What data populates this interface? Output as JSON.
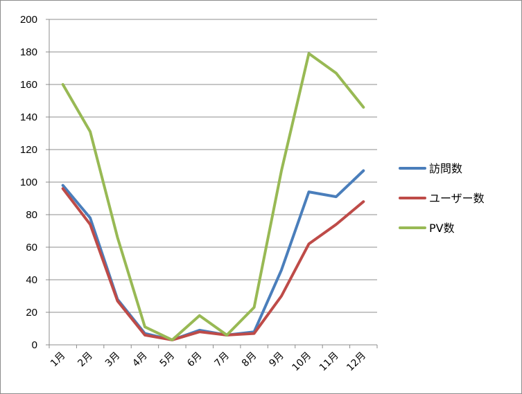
{
  "chart_data": {
    "type": "line",
    "categories": [
      "1月",
      "2月",
      "3月",
      "4月",
      "5月",
      "6月",
      "7月",
      "8月",
      "9月",
      "10月",
      "11月",
      "12月"
    ],
    "ylim": [
      0,
      200
    ],
    "y_ticks": [
      0,
      20,
      40,
      60,
      80,
      100,
      120,
      140,
      160,
      180,
      200
    ],
    "grid": "horizontal",
    "legend_position": "right",
    "series": [
      {
        "name": "訪問数",
        "color": "#4a7ebb",
        "values": [
          98,
          78,
          28,
          7,
          3,
          9,
          6,
          8,
          46,
          94,
          91,
          107
        ]
      },
      {
        "name": "ユーザー数",
        "color": "#be4b48",
        "values": [
          96,
          74,
          27,
          6,
          3,
          8,
          6,
          7,
          30,
          62,
          74,
          88
        ]
      },
      {
        "name": "PV数",
        "color": "#98b954",
        "values": [
          160,
          131,
          66,
          11,
          3,
          18,
          6,
          23,
          107,
          179,
          167,
          146
        ]
      }
    ]
  }
}
